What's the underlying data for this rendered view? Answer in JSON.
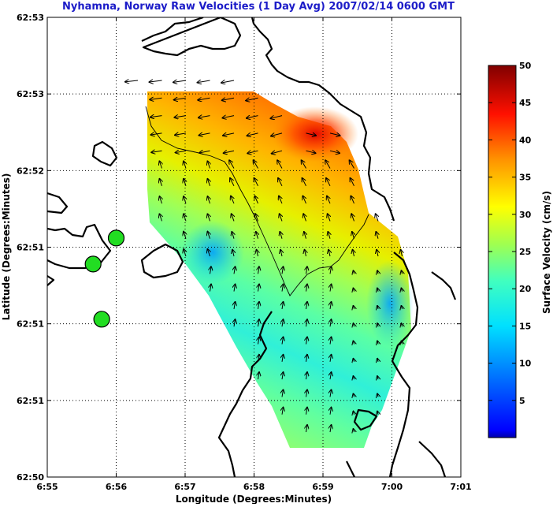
{
  "chart_data": {
    "type": "heatmap",
    "title": "Nyhamna, Norway Raw Velocities (1 Day Avg) 2007/02/14 0600 GMT",
    "xlabel": "Longitude (Degrees:Minutes)",
    "ylabel": "Latitude (Degrees:Minutes)",
    "x_ticks": [
      "6:55",
      "6:56",
      "6:57",
      "6:58",
      "6:59",
      "7:00",
      "7:01"
    ],
    "y_ticks": [
      "62:50",
      "62:51",
      "62:51",
      "62:51",
      "62:52",
      "62:53",
      "62:53"
    ],
    "grid": true,
    "colorbar": {
      "label": "Surface Velocity (cm/s)",
      "ticks": [
        "5",
        "10",
        "15",
        "20",
        "25",
        "30",
        "35",
        "40",
        "45",
        "50"
      ],
      "range": [
        0,
        50
      ],
      "colormap": "jet"
    },
    "stations": [
      {
        "lon_min": 6.65,
        "lat_idx": 2.78
      },
      {
        "lon_min": 7.9,
        "lat_idx": 2.06
      },
      {
        "lon_min": 10.0,
        "lat_idx": 3.12
      }
    ]
  },
  "colors": {
    "title": "#1c1cc8",
    "station": "#22dd22",
    "coast": "#000000"
  }
}
